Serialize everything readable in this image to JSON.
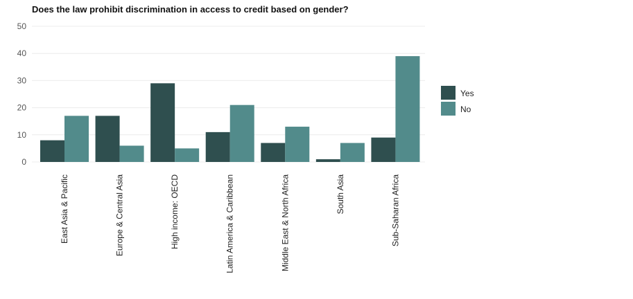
{
  "chart_data": {
    "type": "bar",
    "title": "Does the law prohibit discrimination in access to credit based on gender?",
    "categories": [
      "East Asia & Pacific",
      "Europe & Central Asia",
      "High income: OECD",
      "Latin America & Caribbean",
      "Middle East & North Africa",
      "South Asia",
      "Sub-Saharan Africa"
    ],
    "series": [
      {
        "name": "Yes",
        "color": "#2f4f4f",
        "values": [
          8,
          17,
          29,
          11,
          7,
          1,
          9
        ]
      },
      {
        "name": "No",
        "color": "#528b8b",
        "values": [
          17,
          6,
          5,
          21,
          13,
          7,
          39
        ]
      }
    ],
    "ylim": [
      0,
      50
    ],
    "yticks": [
      0,
      10,
      20,
      30,
      40,
      50
    ],
    "grid": true,
    "legend_position": "right"
  }
}
